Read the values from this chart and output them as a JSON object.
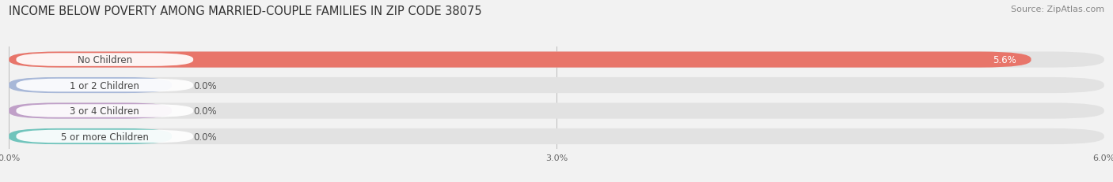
{
  "title": "INCOME BELOW POVERTY AMONG MARRIED-COUPLE FAMILIES IN ZIP CODE 38075",
  "source": "Source: ZipAtlas.com",
  "categories": [
    "No Children",
    "1 or 2 Children",
    "3 or 4 Children",
    "5 or more Children"
  ],
  "values": [
    5.6,
    0.0,
    0.0,
    0.0
  ],
  "bar_colors": [
    "#E8756A",
    "#A8B8D8",
    "#C0A0C8",
    "#70C4BC"
  ],
  "value_labels": [
    "5.6%",
    "0.0%",
    "0.0%",
    "0.0%"
  ],
  "xlim_max": 6.0,
  "xticks": [
    0.0,
    3.0,
    6.0
  ],
  "xticklabels": [
    "0.0%",
    "3.0%",
    "6.0%"
  ],
  "background_color": "#f2f2f2",
  "bar_bg_color": "#e2e2e2",
  "title_fontsize": 10.5,
  "source_fontsize": 8,
  "label_fontsize": 8.5,
  "value_fontsize": 8.5,
  "tick_fontsize": 8
}
